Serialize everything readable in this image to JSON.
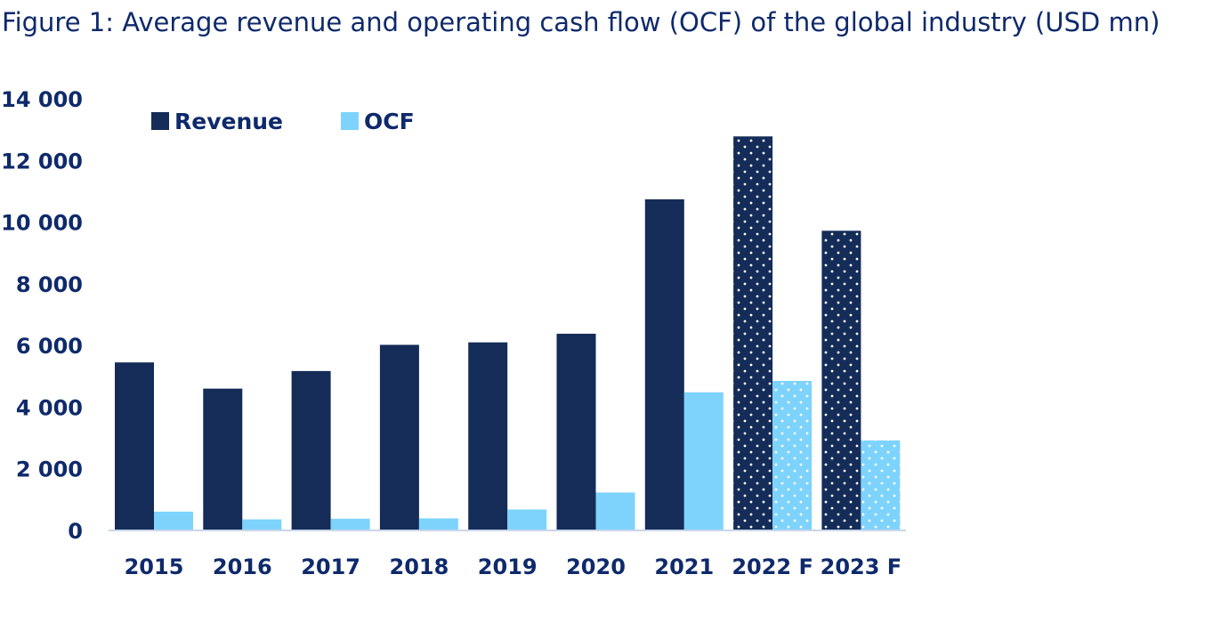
{
  "title": "Figure 1: Average revenue and operating cash flow (OCF) of the global industry (USD mn)",
  "colors": {
    "revenue": "#142c57",
    "ocf": "#7dd3fc",
    "text": "#0f2a6b",
    "axis": "#c9d6ea"
  },
  "chart_data": {
    "type": "bar",
    "title": "Figure 1: Average revenue and operating cash flow (OCF) of the global industry (USD mn)",
    "xlabel": "",
    "ylabel": "",
    "categories": [
      "2015",
      "2016",
      "2017",
      "2018",
      "2019",
      "2020",
      "2021",
      "2022 F",
      "2023 F"
    ],
    "forecast": [
      false,
      false,
      false,
      false,
      false,
      false,
      false,
      true,
      true
    ],
    "series": [
      {
        "name": "Revenue",
        "values": [
          5450,
          4600,
          5170,
          6020,
          6100,
          6380,
          10740,
          12780,
          9720
        ]
      },
      {
        "name": "OCF",
        "values": [
          610,
          360,
          380,
          390,
          680,
          1230,
          4480,
          4850,
          2920
        ]
      }
    ],
    "ylim": [
      0,
      14000
    ],
    "yticks": [
      0,
      2000,
      4000,
      6000,
      8000,
      10000,
      12000,
      14000
    ],
    "ytick_labels": [
      "0",
      "2 000",
      "4 000",
      "6 000",
      "8 000",
      "10 000",
      "12 000",
      "14 000"
    ],
    "grid": false,
    "legend": {
      "position": "top-left",
      "labels": [
        "Revenue",
        "OCF"
      ]
    }
  }
}
